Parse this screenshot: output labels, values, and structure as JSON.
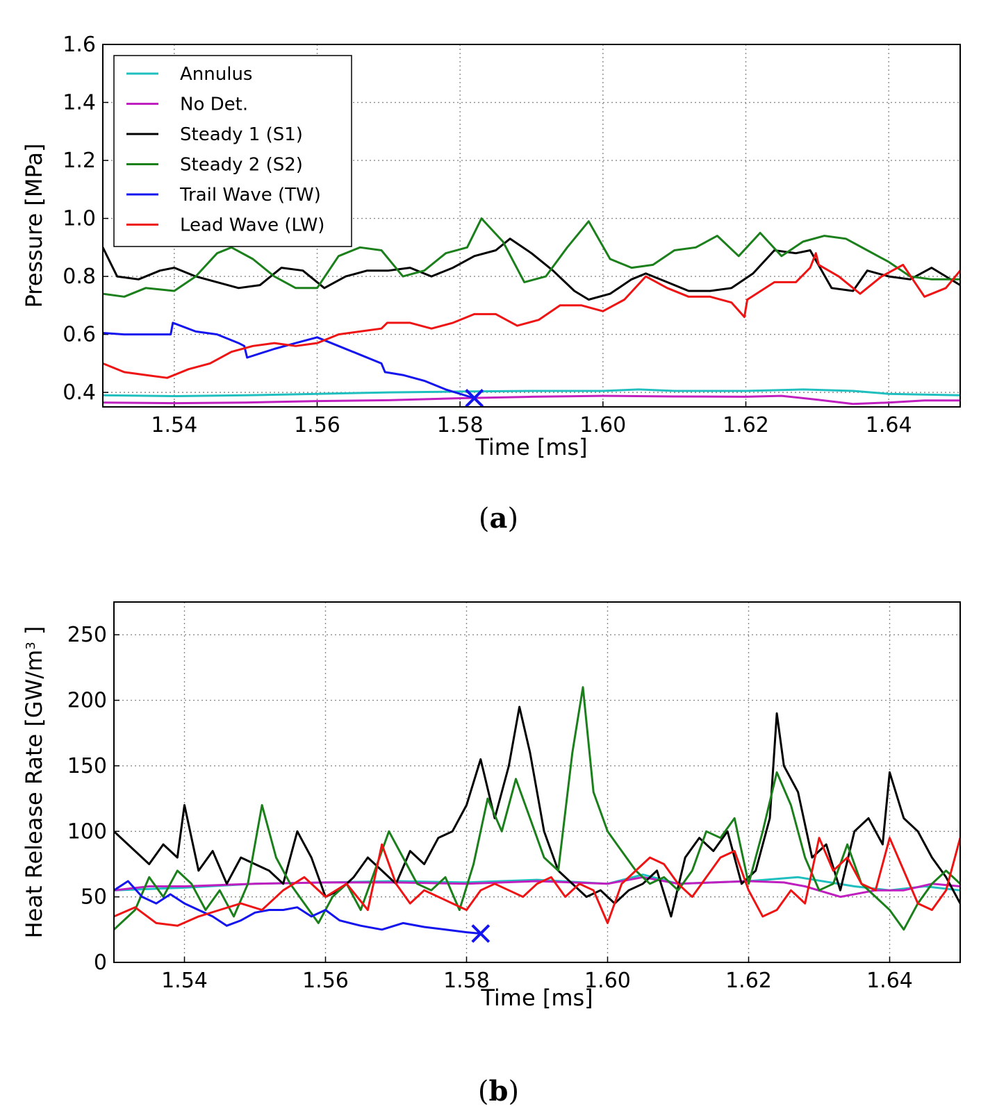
{
  "colors": {
    "annulus": "#1fbfbf",
    "no_det": "#bf1fbf",
    "steady1": "#000000",
    "steady2": "#1b801b",
    "trail": "#1414ee",
    "lead": "#ee1414"
  },
  "chart_data": [
    {
      "id": "a",
      "type": "line",
      "caption_letter": "a",
      "title": "",
      "xlabel": "Time [ms]",
      "ylabel": "Pressure [MPa]",
      "xlim": [
        1.53,
        1.65
      ],
      "ylim": [
        0.35,
        1.6
      ],
      "grid": true,
      "legend_placement": "top-left",
      "xticks": [
        "1.54",
        "1.56",
        "1.58",
        "1.60",
        "1.62",
        "1.64"
      ],
      "yticks": [
        "0.4",
        "0.6",
        "0.8",
        "1.0",
        "1.2",
        "1.4",
        "1.6"
      ],
      "marker": {
        "symbol": "x",
        "x": 1.582,
        "y": 0.38,
        "color_key": "trail"
      },
      "series": [
        {
          "name": "Annulus",
          "color_key": "annulus",
          "x": [
            1.53,
            1.54,
            1.55,
            1.56,
            1.57,
            1.58,
            1.59,
            1.6,
            1.605,
            1.61,
            1.62,
            1.628,
            1.635,
            1.64,
            1.65
          ],
          "y": [
            0.39,
            0.387,
            0.39,
            0.395,
            0.4,
            0.403,
            0.405,
            0.405,
            0.41,
            0.405,
            0.405,
            0.41,
            0.405,
            0.395,
            0.39
          ]
        },
        {
          "name": "No Det.",
          "color_key": "no_det",
          "x": [
            1.53,
            1.54,
            1.55,
            1.56,
            1.57,
            1.58,
            1.59,
            1.6,
            1.61,
            1.62,
            1.625,
            1.63,
            1.635,
            1.64,
            1.645,
            1.65
          ],
          "y": [
            0.365,
            0.363,
            0.365,
            0.37,
            0.373,
            0.38,
            0.385,
            0.388,
            0.386,
            0.385,
            0.388,
            0.375,
            0.36,
            0.365,
            0.372,
            0.372
          ]
        },
        {
          "name": "Steady 1 (S1)",
          "color_key": "steady1",
          "x": [
            1.53,
            1.532,
            1.535,
            1.538,
            1.54,
            1.543,
            1.546,
            1.549,
            1.552,
            1.555,
            1.558,
            1.561,
            1.564,
            1.567,
            1.57,
            1.573,
            1.576,
            1.579,
            1.582,
            1.585,
            1.587,
            1.59,
            1.593,
            1.596,
            1.598,
            1.601,
            1.604,
            1.606,
            1.609,
            1.612,
            1.615,
            1.618,
            1.621,
            1.624,
            1.627,
            1.629,
            1.632,
            1.635,
            1.637,
            1.64,
            1.643,
            1.646,
            1.65
          ],
          "y": [
            0.9,
            0.8,
            0.79,
            0.82,
            0.83,
            0.8,
            0.78,
            0.76,
            0.77,
            0.83,
            0.82,
            0.76,
            0.8,
            0.82,
            0.82,
            0.83,
            0.8,
            0.83,
            0.87,
            0.89,
            0.93,
            0.88,
            0.82,
            0.75,
            0.72,
            0.74,
            0.79,
            0.81,
            0.78,
            0.75,
            0.75,
            0.76,
            0.81,
            0.89,
            0.88,
            0.89,
            0.76,
            0.75,
            0.82,
            0.8,
            0.79,
            0.83,
            0.77
          ]
        },
        {
          "name": "Steady 2 (S2)",
          "color_key": "steady2",
          "x": [
            1.53,
            1.533,
            1.536,
            1.54,
            1.543,
            1.546,
            1.548,
            1.551,
            1.554,
            1.557,
            1.56,
            1.563,
            1.566,
            1.569,
            1.572,
            1.575,
            1.578,
            1.581,
            1.583,
            1.586,
            1.589,
            1.592,
            1.595,
            1.598,
            1.601,
            1.604,
            1.607,
            1.61,
            1.613,
            1.616,
            1.619,
            1.622,
            1.625,
            1.628,
            1.631,
            1.634,
            1.637,
            1.64,
            1.643,
            1.646,
            1.65
          ],
          "y": [
            0.74,
            0.73,
            0.76,
            0.75,
            0.8,
            0.88,
            0.9,
            0.86,
            0.8,
            0.76,
            0.76,
            0.87,
            0.9,
            0.89,
            0.8,
            0.82,
            0.88,
            0.9,
            1.0,
            0.92,
            0.78,
            0.8,
            0.9,
            0.99,
            0.86,
            0.83,
            0.84,
            0.89,
            0.9,
            0.94,
            0.87,
            0.95,
            0.87,
            0.92,
            0.94,
            0.93,
            0.89,
            0.85,
            0.8,
            0.79,
            0.79
          ]
        },
        {
          "name": "Trail Wave (TW)",
          "color_key": "trail",
          "x": [
            1.53,
            1.533,
            1.536,
            1.5395,
            1.5398,
            1.543,
            1.546,
            1.549,
            1.5498,
            1.5502,
            1.554,
            1.557,
            1.56,
            1.563,
            1.566,
            1.569,
            1.5695,
            1.572,
            1.575,
            1.578,
            1.582
          ],
          "y": [
            0.605,
            0.6,
            0.6,
            0.6,
            0.64,
            0.61,
            0.6,
            0.57,
            0.56,
            0.52,
            0.55,
            0.57,
            0.59,
            0.56,
            0.53,
            0.5,
            0.47,
            0.46,
            0.44,
            0.41,
            0.38
          ]
        },
        {
          "name": "Lead Wave (LW)",
          "color_key": "lead",
          "x": [
            1.53,
            1.533,
            1.536,
            1.539,
            1.542,
            1.545,
            1.548,
            1.551,
            1.554,
            1.557,
            1.56,
            1.563,
            1.566,
            1.569,
            1.5698,
            1.573,
            1.576,
            1.579,
            1.582,
            1.585,
            1.588,
            1.591,
            1.594,
            1.597,
            1.6,
            1.603,
            1.606,
            1.609,
            1.612,
            1.615,
            1.618,
            1.6198,
            1.6202,
            1.624,
            1.627,
            1.629,
            1.6298,
            1.6302,
            1.633,
            1.636,
            1.639,
            1.642,
            1.645,
            1.648,
            1.65
          ],
          "y": [
            0.5,
            0.47,
            0.46,
            0.45,
            0.48,
            0.5,
            0.54,
            0.56,
            0.57,
            0.56,
            0.57,
            0.6,
            0.61,
            0.62,
            0.64,
            0.64,
            0.62,
            0.64,
            0.67,
            0.67,
            0.63,
            0.65,
            0.7,
            0.7,
            0.68,
            0.72,
            0.8,
            0.76,
            0.73,
            0.73,
            0.71,
            0.66,
            0.72,
            0.78,
            0.78,
            0.83,
            0.88,
            0.84,
            0.8,
            0.74,
            0.8,
            0.84,
            0.73,
            0.76,
            0.82
          ]
        }
      ]
    },
    {
      "id": "b",
      "type": "line",
      "caption_letter": "b",
      "title": "",
      "xlabel": "Time [ms]",
      "ylabel": "Heat Release Rate [GW/m",
      "ylabel_superscript": "3",
      "ylabel_suffix": " ]",
      "xlim": [
        1.53,
        1.65
      ],
      "ylim": [
        0,
        275
      ],
      "grid": true,
      "xticks": [
        "1.54",
        "1.56",
        "1.58",
        "1.60",
        "1.62",
        "1.64"
      ],
      "yticks": [
        "0",
        "50",
        "100",
        "150",
        "200",
        "250"
      ],
      "marker": {
        "symbol": "x",
        "x": 1.582,
        "y": 22,
        "color_key": "trail"
      },
      "series": [
        {
          "name": "Annulus",
          "color_key": "annulus",
          "x": [
            1.53,
            1.54,
            1.55,
            1.56,
            1.57,
            1.58,
            1.59,
            1.6,
            1.605,
            1.61,
            1.62,
            1.627,
            1.635,
            1.64,
            1.645,
            1.65
          ],
          "y": [
            55,
            57,
            60,
            61,
            62,
            61,
            63,
            60,
            67,
            60,
            62,
            65,
            58,
            55,
            58,
            55
          ]
        },
        {
          "name": "No Det.",
          "color_key": "no_det",
          "x": [
            1.53,
            1.535,
            1.54,
            1.55,
            1.56,
            1.57,
            1.58,
            1.59,
            1.6,
            1.605,
            1.61,
            1.62,
            1.625,
            1.628,
            1.633,
            1.638,
            1.642,
            1.646,
            1.65
          ],
          "y": [
            55,
            58,
            58,
            60,
            61,
            61,
            60,
            62,
            60,
            65,
            60,
            62,
            61,
            58,
            50,
            55,
            55,
            60,
            58
          ]
        },
        {
          "name": "Steady 1 (S1)",
          "color_key": "steady1",
          "x": [
            1.53,
            1.533,
            1.535,
            1.537,
            1.539,
            1.54,
            1.542,
            1.544,
            1.546,
            1.548,
            1.55,
            1.552,
            1.554,
            1.556,
            1.558,
            1.56,
            1.562,
            1.564,
            1.566,
            1.568,
            1.57,
            1.572,
            1.574,
            1.576,
            1.578,
            1.58,
            1.582,
            1.584,
            1.586,
            1.5875,
            1.589,
            1.591,
            1.593,
            1.595,
            1.597,
            1.599,
            1.601,
            1.603,
            1.605,
            1.607,
            1.609,
            1.611,
            1.613,
            1.615,
            1.617,
            1.619,
            1.621,
            1.623,
            1.624,
            1.625,
            1.627,
            1.629,
            1.631,
            1.633,
            1.635,
            1.637,
            1.639,
            1.64,
            1.642,
            1.644,
            1.646,
            1.648,
            1.65
          ],
          "y": [
            100,
            85,
            75,
            90,
            80,
            120,
            70,
            85,
            60,
            80,
            75,
            70,
            60,
            100,
            80,
            50,
            55,
            65,
            80,
            70,
            60,
            85,
            75,
            95,
            100,
            120,
            155,
            110,
            150,
            195,
            160,
            100,
            70,
            60,
            50,
            55,
            45,
            55,
            60,
            70,
            35,
            80,
            95,
            85,
            100,
            60,
            70,
            110,
            190,
            150,
            130,
            80,
            90,
            55,
            100,
            110,
            90,
            145,
            110,
            100,
            80,
            65,
            45
          ]
        },
        {
          "name": "Steady 2 (S2)",
          "color_key": "steady2",
          "x": [
            1.53,
            1.533,
            1.535,
            1.537,
            1.539,
            1.541,
            1.543,
            1.545,
            1.547,
            1.549,
            1.551,
            1.553,
            1.555,
            1.557,
            1.559,
            1.561,
            1.563,
            1.565,
            1.567,
            1.569,
            1.571,
            1.573,
            1.575,
            1.577,
            1.579,
            1.581,
            1.583,
            1.585,
            1.587,
            1.589,
            1.591,
            1.593,
            1.595,
            1.5965,
            1.598,
            1.6,
            1.602,
            1.604,
            1.606,
            1.608,
            1.61,
            1.612,
            1.614,
            1.616,
            1.618,
            1.62,
            1.622,
            1.624,
            1.626,
            1.628,
            1.63,
            1.632,
            1.634,
            1.636,
            1.638,
            1.64,
            1.642,
            1.644,
            1.646,
            1.648,
            1.65
          ],
          "y": [
            25,
            40,
            65,
            50,
            70,
            60,
            40,
            55,
            35,
            60,
            120,
            80,
            60,
            45,
            30,
            50,
            60,
            40,
            70,
            100,
            80,
            60,
            55,
            65,
            40,
            75,
            125,
            100,
            140,
            110,
            80,
            70,
            160,
            210,
            130,
            100,
            85,
            70,
            60,
            65,
            55,
            70,
            100,
            95,
            110,
            60,
            100,
            145,
            120,
            80,
            55,
            60,
            90,
            60,
            50,
            40,
            25,
            45,
            60,
            70,
            60
          ]
        },
        {
          "name": "Trail Wave (TW)",
          "color_key": "trail",
          "x": [
            1.53,
            1.532,
            1.534,
            1.536,
            1.538,
            1.54,
            1.542,
            1.544,
            1.546,
            1.548,
            1.55,
            1.552,
            1.554,
            1.556,
            1.558,
            1.56,
            1.562,
            1.565,
            1.568,
            1.571,
            1.574,
            1.577,
            1.58,
            1.582
          ],
          "y": [
            55,
            62,
            50,
            45,
            52,
            45,
            40,
            35,
            28,
            32,
            38,
            40,
            40,
            42,
            35,
            40,
            32,
            28,
            25,
            30,
            27,
            25,
            23,
            22
          ]
        },
        {
          "name": "Lead Wave (LW)",
          "color_key": "lead",
          "x": [
            1.53,
            1.533,
            1.536,
            1.539,
            1.542,
            1.545,
            1.548,
            1.551,
            1.554,
            1.557,
            1.56,
            1.563,
            1.566,
            1.568,
            1.57,
            1.572,
            1.574,
            1.576,
            1.578,
            1.58,
            1.582,
            1.584,
            1.586,
            1.588,
            1.59,
            1.592,
            1.594,
            1.596,
            1.598,
            1.6,
            1.602,
            1.604,
            1.606,
            1.608,
            1.61,
            1.612,
            1.614,
            1.616,
            1.618,
            1.62,
            1.622,
            1.624,
            1.626,
            1.628,
            1.63,
            1.632,
            1.634,
            1.636,
            1.638,
            1.64,
            1.642,
            1.644,
            1.646,
            1.648,
            1.65
          ],
          "y": [
            35,
            42,
            30,
            28,
            35,
            40,
            45,
            40,
            55,
            65,
            50,
            60,
            40,
            90,
            60,
            45,
            55,
            50,
            45,
            40,
            55,
            60,
            55,
            50,
            60,
            65,
            50,
            60,
            55,
            30,
            60,
            70,
            80,
            75,
            60,
            50,
            65,
            80,
            85,
            55,
            35,
            40,
            55,
            45,
            95,
            70,
            80,
            60,
            55,
            95,
            70,
            45,
            40,
            55,
            95
          ]
        }
      ]
    }
  ],
  "legend": {
    "entries": [
      "Annulus",
      "No Det.",
      "Steady 1 (S1)",
      "Steady 2 (S2)",
      "Trail Wave (TW)",
      "Lead Wave (LW)"
    ],
    "color_keys": [
      "annulus",
      "no_det",
      "steady1",
      "steady2",
      "trail",
      "lead"
    ]
  }
}
